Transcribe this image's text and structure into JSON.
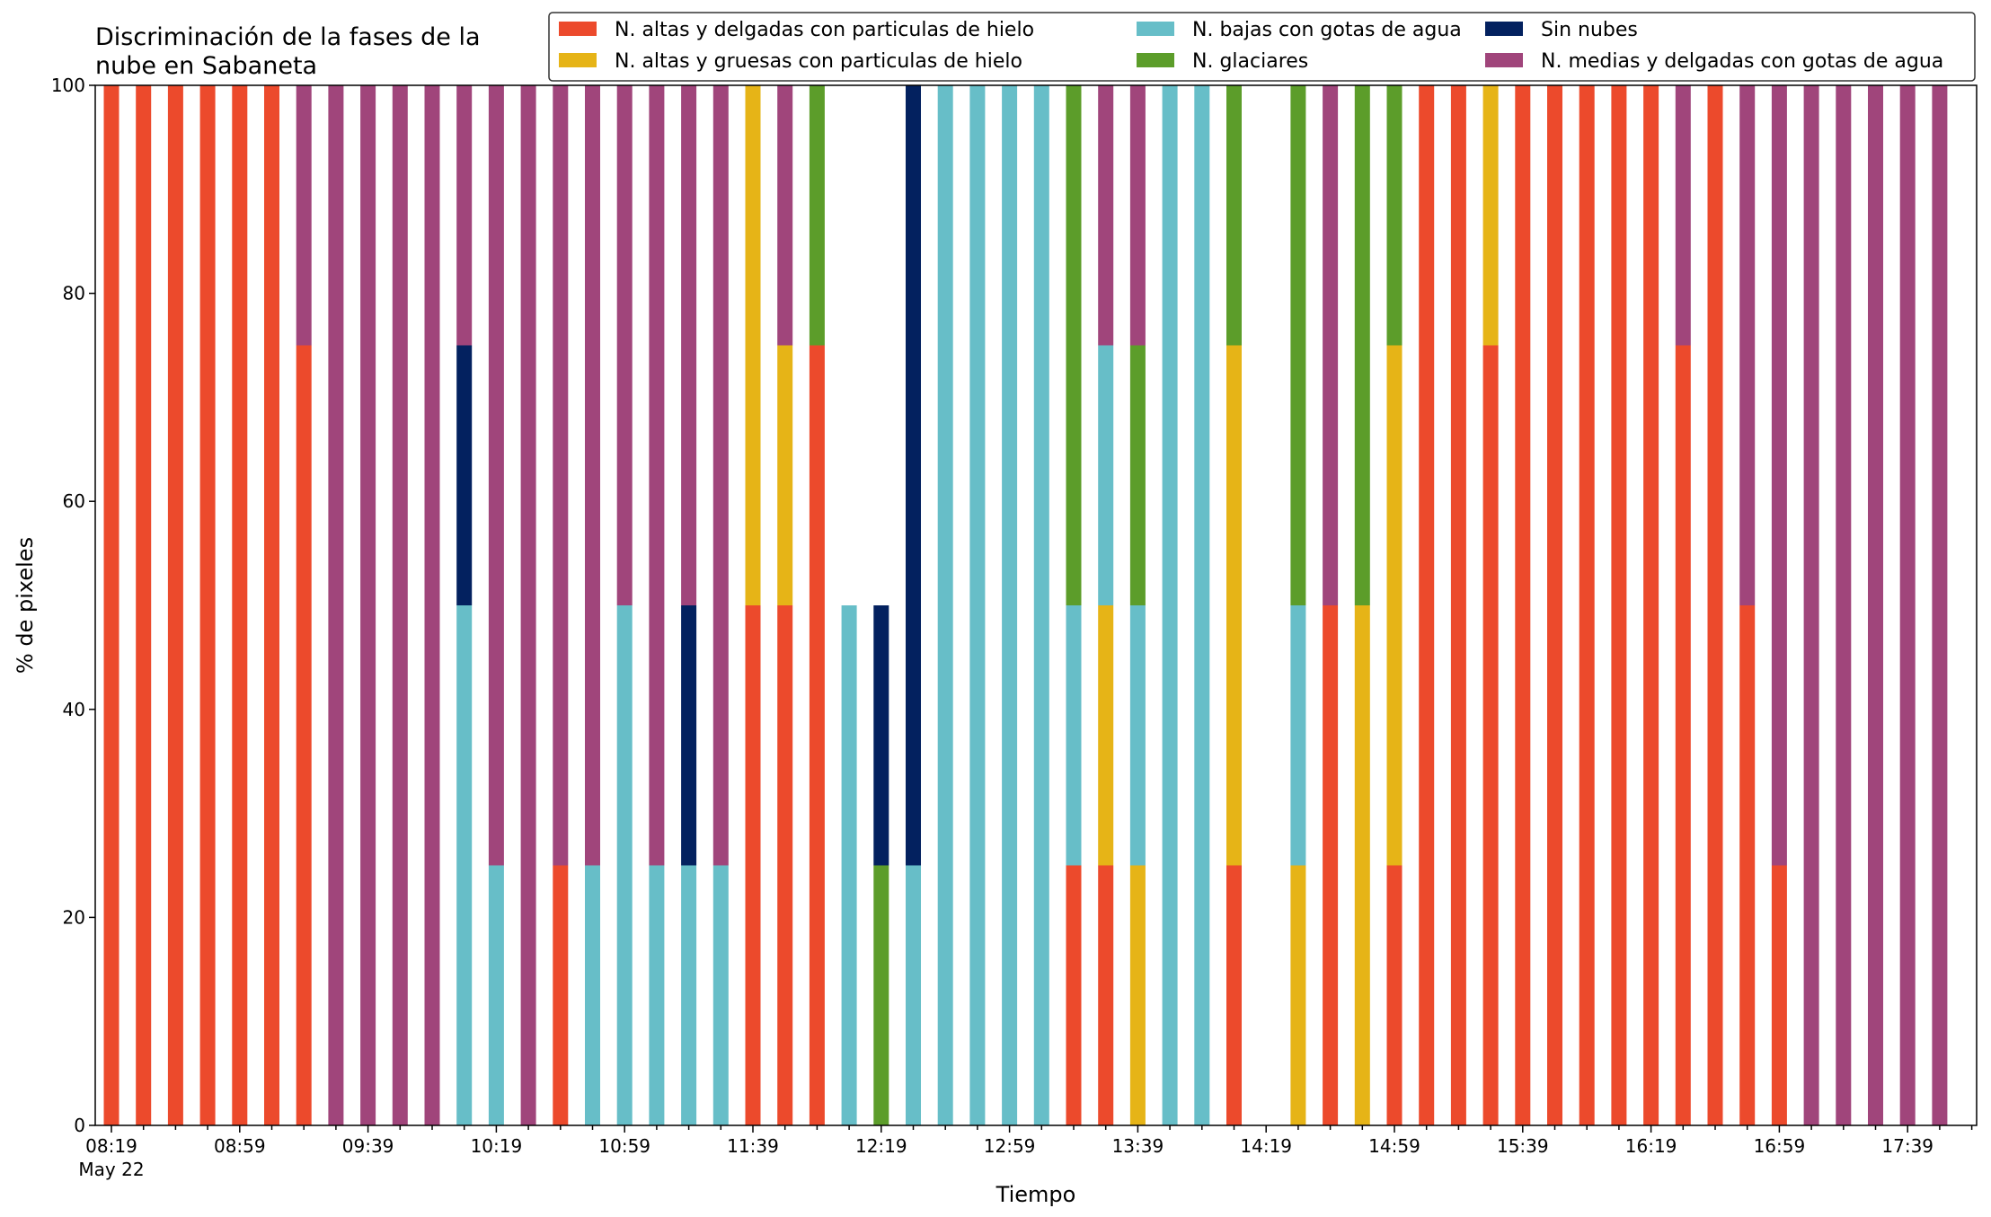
{
  "chart_data": {
    "type": "bar",
    "stacked": true,
    "title_lines": [
      "Discriminación de la fases de la",
      "nube en Sabaneta"
    ],
    "xlabel": "Tiempo",
    "ylabel": "% de pixeles",
    "ylim": [
      0,
      100
    ],
    "yticks": [
      0,
      20,
      40,
      60,
      80,
      100
    ],
    "grid": false,
    "legend_position": "top-right",
    "x_date_label": "May 22",
    "xtick_labels": [
      "08:19",
      "08:59",
      "09:39",
      "10:19",
      "10:59",
      "11:39",
      "12:19",
      "12:59",
      "13:39",
      "14:19",
      "14:59",
      "15:39",
      "16:19",
      "16:59",
      "17:39"
    ],
    "categories": [
      "08:19",
      "08:29",
      "08:39",
      "08:49",
      "08:59",
      "09:09",
      "09:19",
      "09:29",
      "09:39",
      "09:49",
      "09:59",
      "10:09",
      "10:19",
      "10:29",
      "10:39",
      "10:49",
      "10:59",
      "11:09",
      "11:19",
      "11:29",
      "11:39",
      "11:49",
      "11:59",
      "12:09",
      "12:19",
      "12:29",
      "12:39",
      "12:49",
      "12:59",
      "13:09",
      "13:19",
      "13:29",
      "13:39",
      "13:49",
      "13:59",
      "14:09",
      "14:19",
      "14:29",
      "14:39",
      "14:49",
      "14:59",
      "15:09",
      "15:19",
      "15:29",
      "15:39",
      "15:49",
      "15:59",
      "16:09",
      "16:19",
      "16:29",
      "16:39",
      "16:49",
      "16:59",
      "17:09",
      "17:19",
      "17:29",
      "17:39",
      "17:49"
    ],
    "series": [
      {
        "name": "N. altas y delgadas con particulas de hielo",
        "color": "#ec4a2c",
        "values": [
          100,
          100,
          100,
          100,
          100,
          100,
          75,
          0,
          0,
          0,
          0,
          0,
          0,
          0,
          25,
          0,
          0,
          0,
          0,
          0,
          50,
          50,
          75,
          0,
          0,
          0,
          0,
          0,
          0,
          0,
          25,
          25,
          0,
          0,
          0,
          25,
          0,
          0,
          50,
          0,
          25,
          100,
          100,
          75,
          100,
          100,
          100,
          100,
          100,
          75,
          100,
          50,
          25,
          0,
          0,
          0,
          0,
          0
        ]
      },
      {
        "name": "N. altas y gruesas con particulas de hielo",
        "color": "#e6b417",
        "values": [
          0,
          0,
          0,
          0,
          0,
          0,
          0,
          0,
          0,
          0,
          0,
          0,
          0,
          0,
          0,
          0,
          0,
          0,
          0,
          0,
          50,
          25,
          0,
          0,
          0,
          0,
          0,
          0,
          0,
          0,
          0,
          25,
          25,
          0,
          0,
          50,
          0,
          25,
          0,
          50,
          50,
          0,
          0,
          25,
          0,
          0,
          0,
          0,
          0,
          0,
          0,
          0,
          0,
          0,
          0,
          0,
          0,
          0
        ]
      },
      {
        "name": "N. bajas con gotas de agua",
        "color": "#67bec8",
        "values": [
          0,
          0,
          0,
          0,
          0,
          0,
          0,
          0,
          0,
          0,
          0,
          50,
          25,
          0,
          0,
          25,
          50,
          25,
          25,
          25,
          0,
          0,
          0,
          50,
          0,
          25,
          100,
          100,
          100,
          100,
          25,
          25,
          25,
          100,
          100,
          0,
          0,
          25,
          0,
          0,
          0,
          0,
          0,
          0,
          0,
          0,
          0,
          0,
          0,
          0,
          0,
          0,
          0,
          0,
          0,
          0,
          0,
          0
        ]
      },
      {
        "name": "N. glaciares",
        "color": "#5c9d2a",
        "values": [
          0,
          0,
          0,
          0,
          0,
          0,
          0,
          0,
          0,
          0,
          0,
          0,
          0,
          0,
          0,
          0,
          0,
          0,
          0,
          0,
          0,
          0,
          25,
          0,
          25,
          0,
          0,
          0,
          0,
          0,
          50,
          0,
          25,
          0,
          0,
          25,
          0,
          50,
          0,
          50,
          25,
          0,
          0,
          0,
          0,
          0,
          0,
          0,
          0,
          0,
          0,
          0,
          0,
          0,
          0,
          0,
          0,
          0
        ]
      },
      {
        "name": "Sin nubes",
        "color": "#03215f",
        "values": [
          0,
          0,
          0,
          0,
          0,
          0,
          0,
          0,
          0,
          0,
          0,
          25,
          0,
          0,
          0,
          0,
          0,
          0,
          25,
          0,
          0,
          0,
          0,
          0,
          25,
          75,
          0,
          0,
          0,
          0,
          0,
          0,
          0,
          0,
          0,
          0,
          0,
          0,
          0,
          0,
          0,
          0,
          0,
          0,
          0,
          0,
          0,
          0,
          0,
          0,
          0,
          0,
          0,
          0,
          0,
          0,
          0,
          0
        ]
      },
      {
        "name": "N. medias y delgadas con gotas de agua",
        "color": "#a0457b",
        "values": [
          0,
          0,
          0,
          0,
          0,
          0,
          25,
          100,
          100,
          100,
          100,
          25,
          75,
          100,
          75,
          75,
          50,
          75,
          50,
          75,
          0,
          25,
          0,
          0,
          0,
          0,
          0,
          0,
          0,
          0,
          0,
          25,
          25,
          0,
          0,
          0,
          0,
          0,
          50,
          0,
          0,
          0,
          0,
          0,
          0,
          0,
          0,
          0,
          0,
          25,
          0,
          50,
          75,
          100,
          100,
          100,
          100,
          100
        ]
      }
    ]
  }
}
